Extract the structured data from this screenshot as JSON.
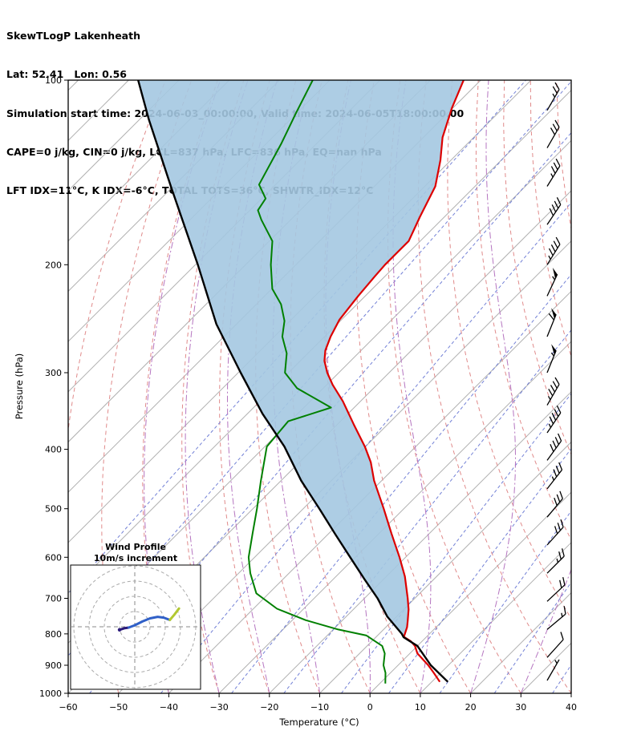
{
  "header": {
    "line1": "SkewTLogP Lakenheath",
    "line2": "Lat: 52.41   Lon: 0.56",
    "line3": "Simulation start time: 2024-06-03_00:00:00, Valid time: 2024-06-05T18:00:00.00",
    "line4": "CAPE=0 j/kg, CIN=0 j/kg, LCL=837 hPa, LFC=836 hPa, EQ=nan hPa",
    "line5": "LFT IDX=11°C, K IDX=-6°C, TOTAL TOTS=36°C, SHWTR_IDX=12°C"
  },
  "chart_data": {
    "type": "skewt-logp",
    "xlabel": "Temperature (°C)",
    "ylabel": "Pressure (hPa)",
    "x_range": [
      -60,
      40
    ],
    "p_range": [
      100,
      1000
    ],
    "x_ticks": [
      -60,
      -50,
      -40,
      -30,
      -20,
      -10,
      0,
      10,
      20,
      30,
      40
    ],
    "y_ticks": [
      100,
      200,
      300,
      400,
      500,
      600,
      700,
      800,
      900,
      1000
    ],
    "skew_deg": 45,
    "isotherms_c": {
      "start": -180,
      "end": 40,
      "step": 10
    },
    "dry_adiabats_c": {
      "start": -60,
      "end": 240,
      "step": 10
    },
    "moist_adiabats_c": {
      "start": -40,
      "end": 40,
      "step": 10
    },
    "mixing_ratio_gkg": [
      0.001,
      0.005,
      0.02,
      0.1,
      0.4,
      1,
      2.5,
      5,
      10,
      20,
      40
    ],
    "temperature_profile": [
      [
        958,
        11.6
      ],
      [
        926,
        8.6
      ],
      [
        900,
        6.0
      ],
      [
        861,
        1.5
      ],
      [
        837,
        -0.5
      ],
      [
        822,
        -2.3
      ],
      [
        809,
        -4.5
      ],
      [
        780,
        -5.8
      ],
      [
        762,
        -6.9
      ],
      [
        730,
        -9.0
      ],
      [
        700,
        -11.4
      ],
      [
        645,
        -16.3
      ],
      [
        600,
        -21.2
      ],
      [
        549,
        -27.5
      ],
      [
        500,
        -34.0
      ],
      [
        450,
        -41.5
      ],
      [
        420,
        -45.8
      ],
      [
        396,
        -50.1
      ],
      [
        364,
        -56.8
      ],
      [
        334,
        -63.5
      ],
      [
        314,
        -68.8
      ],
      [
        300,
        -72.3
      ],
      [
        287,
        -75.2
      ],
      [
        276,
        -77.1
      ],
      [
        262,
        -78.8
      ],
      [
        246,
        -80.4
      ],
      [
        225,
        -81.4
      ],
      [
        209,
        -82.0
      ],
      [
        200,
        -82.3
      ],
      [
        183,
        -82.3
      ],
      [
        167,
        -84.9
      ],
      [
        149,
        -87.9
      ],
      [
        135,
        -92.1
      ],
      [
        124,
        -96.2
      ],
      [
        111,
        -100.2
      ],
      [
        100,
        -103.4
      ]
    ],
    "dewpoint_profile": [
      [
        964,
        1.1
      ],
      [
        926,
        -1.0
      ],
      [
        900,
        -2.9
      ],
      [
        861,
        -5.0
      ],
      [
        837,
        -7.0
      ],
      [
        805,
        -12.2
      ],
      [
        787,
        -19.0
      ],
      [
        760,
        -27.3
      ],
      [
        728,
        -35.3
      ],
      [
        687,
        -42.5
      ],
      [
        637,
        -47.7
      ],
      [
        600,
        -51.2
      ],
      [
        548,
        -55.2
      ],
      [
        500,
        -59.2
      ],
      [
        450,
        -64.0
      ],
      [
        396,
        -69.6
      ],
      [
        360,
        -70.4
      ],
      [
        342,
        -64.6
      ],
      [
        318,
        -75.2
      ],
      [
        300,
        -80.7
      ],
      [
        279,
        -84.2
      ],
      [
        262,
        -88.4
      ],
      [
        247,
        -91.1
      ],
      [
        232,
        -95.1
      ],
      [
        219,
        -99.9
      ],
      [
        200,
        -105.0
      ],
      [
        183,
        -109.4
      ],
      [
        169,
        -115.8
      ],
      [
        163,
        -118.4
      ],
      [
        156,
        -119.2
      ],
      [
        148,
        -123.3
      ],
      [
        127,
        -127.0
      ],
      [
        113,
        -130.2
      ],
      [
        100,
        -133.4
      ]
    ],
    "parcel_profile": [
      [
        958,
        13.2
      ],
      [
        900,
        6.5
      ],
      [
        837,
        0.0
      ],
      [
        810,
        -4.5
      ],
      [
        800,
        -5.5
      ],
      [
        750,
        -11.8
      ],
      [
        700,
        -17.4
      ],
      [
        650,
        -24.0
      ],
      [
        600,
        -31.0
      ],
      [
        550,
        -38.6
      ],
      [
        500,
        -46.8
      ],
      [
        450,
        -56.0
      ],
      [
        396,
        -66.1
      ],
      [
        350,
        -77.0
      ],
      [
        300,
        -89.5
      ],
      [
        250,
        -104.0
      ],
      [
        200,
        -119.5
      ],
      [
        150,
        -140.0
      ],
      [
        116,
        -158.1
      ],
      [
        100,
        -168.1
      ]
    ],
    "cape_shade_max_p": 812,
    "wind_barbs": [
      [
        112,
        25,
        30
      ],
      [
        129,
        30,
        30
      ],
      [
        149,
        35,
        32
      ],
      [
        172,
        40,
        34
      ],
      [
        200,
        45,
        32
      ],
      [
        225,
        55,
        25
      ],
      [
        262,
        60,
        22
      ],
      [
        300,
        55,
        22
      ],
      [
        339,
        45,
        30
      ],
      [
        376,
        45,
        34
      ],
      [
        417,
        40,
        36
      ],
      [
        464,
        35,
        38
      ],
      [
        516,
        30,
        40
      ],
      [
        573,
        30,
        42
      ],
      [
        637,
        25,
        45
      ],
      [
        708,
        20,
        47
      ],
      [
        787,
        15,
        50
      ],
      [
        874,
        10,
        42
      ],
      [
        953,
        5,
        30
      ]
    ],
    "colors": {
      "temperature": "#dd0000",
      "dewpoint": "#008000",
      "parcel": "#000000",
      "shade": "#a4c8e1",
      "isotherm": "#b0b0b0",
      "dry_adiabat": "#e08a8a",
      "moist_adiabat": "#b575c0",
      "mixing_ratio": "#7381d6",
      "barb": "#000000"
    },
    "hodograph": {
      "title": "Wind Profile",
      "subtitle": "10m/s increment",
      "ring_interval_ms": 10,
      "rings_ms": [
        10,
        20,
        30,
        40
      ],
      "trace_segments": [
        {
          "color": "#2a1a7a",
          "points": [
            [
              -10,
              -2
            ],
            [
              -7,
              -1
            ],
            [
              -4,
              -0.5
            ]
          ]
        },
        {
          "color": "#3060c8",
          "points": [
            [
              -4,
              -0.5
            ],
            [
              0,
              1
            ],
            [
              5,
              3.5
            ],
            [
              10,
              5.5
            ],
            [
              15,
              6.5
            ],
            [
              19,
              6
            ],
            [
              23,
              4.5
            ]
          ]
        },
        {
          "color": "#b2c832",
          "points": [
            [
              23,
              4.5
            ],
            [
              26,
              8
            ],
            [
              29,
              12
            ]
          ]
        }
      ]
    }
  }
}
